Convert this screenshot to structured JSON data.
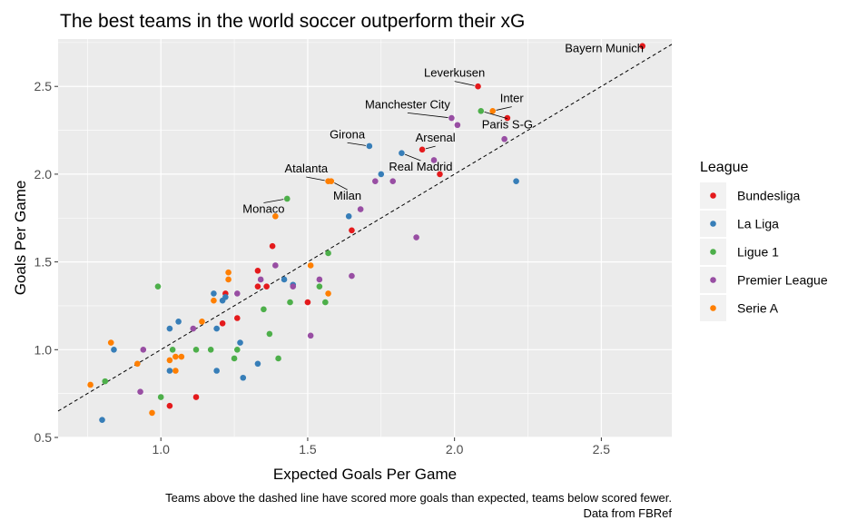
{
  "chart_data": {
    "type": "scatter",
    "title": "The best teams in the world soccer outperform their xG",
    "xlabel": "Expected Goals Per Game",
    "ylabel": "Goals Per Game",
    "caption_lines": [
      "Teams above the dashed line have scored more goals than expected, teams below scored fewer.",
      "Data from FBRef"
    ],
    "xlim": [
      0.65,
      2.74
    ],
    "ylim": [
      0.5,
      2.77
    ],
    "x_ticks": [
      1.0,
      1.5,
      2.0,
      2.5
    ],
    "x_tick_labels": [
      "1.0",
      "1.5",
      "2.0",
      "2.5"
    ],
    "y_ticks": [
      0.5,
      1.0,
      1.5,
      2.0,
      2.5
    ],
    "y_tick_labels": [
      "0.5",
      "1.0",
      "1.5",
      "2.0",
      "2.5"
    ],
    "grid": true,
    "reference_line": {
      "style": "dashed",
      "slope": 1,
      "intercept": 0
    },
    "legend": {
      "title": "League",
      "position": "right",
      "entries": [
        "Bundesliga",
        "La Liga",
        "Ligue 1",
        "Premier League",
        "Serie A"
      ]
    },
    "colors": {
      "Bundesliga": "#E41A1C",
      "La Liga": "#377EB8",
      "Ligue 1": "#4DAF4A",
      "Premier League": "#984EA3",
      "Serie A": "#FF7F00"
    },
    "series": [
      {
        "name": "Bundesliga",
        "points": [
          [
            2.64,
            2.73
          ],
          [
            2.08,
            2.5
          ],
          [
            2.18,
            2.32
          ],
          [
            1.89,
            2.14
          ],
          [
            1.95,
            2.0
          ],
          [
            1.65,
            1.68
          ],
          [
            1.38,
            1.59
          ],
          [
            1.33,
            1.45
          ],
          [
            1.36,
            1.36
          ],
          [
            1.33,
            1.36
          ],
          [
            1.5,
            1.27
          ],
          [
            1.22,
            1.32
          ],
          [
            1.26,
            1.18
          ],
          [
            1.21,
            1.15
          ],
          [
            1.12,
            0.73
          ],
          [
            1.03,
            0.68
          ]
        ]
      },
      {
        "name": "La Liga",
        "points": [
          [
            2.21,
            1.96
          ],
          [
            1.71,
            2.16
          ],
          [
            1.82,
            2.12
          ],
          [
            1.75,
            2.0
          ],
          [
            1.64,
            1.76
          ],
          [
            1.42,
            1.4
          ],
          [
            1.45,
            1.37
          ],
          [
            1.18,
            1.32
          ],
          [
            1.22,
            1.3
          ],
          [
            1.21,
            1.28
          ],
          [
            1.06,
            1.16
          ],
          [
            1.03,
            1.12
          ],
          [
            1.19,
            1.12
          ],
          [
            1.27,
            1.04
          ],
          [
            1.33,
            0.92
          ],
          [
            1.19,
            0.88
          ],
          [
            1.03,
            0.88
          ],
          [
            1.28,
            0.84
          ],
          [
            0.84,
            1.0
          ],
          [
            0.8,
            0.6
          ]
        ]
      },
      {
        "name": "Ligue 1",
        "points": [
          [
            2.09,
            2.36
          ],
          [
            1.43,
            1.86
          ],
          [
            1.57,
            1.55
          ],
          [
            1.35,
            1.23
          ],
          [
            1.44,
            1.27
          ],
          [
            1.54,
            1.36
          ],
          [
            1.56,
            1.27
          ],
          [
            0.99,
            1.36
          ],
          [
            1.37,
            1.09
          ],
          [
            1.4,
            0.95
          ],
          [
            1.26,
            1.0
          ],
          [
            1.25,
            0.95
          ],
          [
            1.17,
            1.0
          ],
          [
            1.12,
            1.0
          ],
          [
            1.04,
            1.0
          ],
          [
            1.0,
            0.73
          ],
          [
            0.81,
            0.82
          ]
        ]
      },
      {
        "name": "Premier League",
        "points": [
          [
            1.99,
            2.32
          ],
          [
            2.01,
            2.28
          ],
          [
            2.17,
            2.2
          ],
          [
            1.93,
            2.08
          ],
          [
            1.73,
            1.96
          ],
          [
            1.79,
            1.96
          ],
          [
            1.68,
            1.8
          ],
          [
            1.87,
            1.64
          ],
          [
            1.65,
            1.42
          ],
          [
            1.39,
            1.48
          ],
          [
            1.54,
            1.4
          ],
          [
            1.34,
            1.4
          ],
          [
            1.26,
            1.32
          ],
          [
            1.45,
            1.36
          ],
          [
            1.51,
            1.08
          ],
          [
            1.11,
            1.12
          ],
          [
            0.94,
            1.0
          ],
          [
            0.93,
            0.76
          ]
        ]
      },
      {
        "name": "Serie A",
        "points": [
          [
            2.13,
            2.36
          ],
          [
            1.57,
            1.96
          ],
          [
            1.58,
            1.96
          ],
          [
            1.39,
            1.76
          ],
          [
            1.51,
            1.48
          ],
          [
            1.23,
            1.44
          ],
          [
            1.23,
            1.4
          ],
          [
            1.18,
            1.28
          ],
          [
            1.14,
            1.16
          ],
          [
            1.57,
            1.32
          ],
          [
            1.05,
            0.96
          ],
          [
            1.07,
            0.96
          ],
          [
            1.03,
            0.94
          ],
          [
            1.05,
            0.88
          ],
          [
            0.83,
            1.04
          ],
          [
            0.92,
            0.92
          ],
          [
            0.76,
            0.8
          ],
          [
            0.97,
            0.64
          ]
        ]
      }
    ],
    "annotations": [
      {
        "text": "Bayern Munich",
        "x": 2.64,
        "y": 2.73,
        "label_x": 2.51,
        "label_y": 2.695,
        "anchor": "middle",
        "leader": false
      },
      {
        "text": "Leverkusen",
        "x": 2.08,
        "y": 2.5,
        "label_x": 2.0,
        "label_y": 2.555,
        "anchor": "middle",
        "leader": true
      },
      {
        "text": "Inter",
        "x": 2.13,
        "y": 2.36,
        "label_x": 2.195,
        "label_y": 2.41,
        "anchor": "middle",
        "leader": true
      },
      {
        "text": "Manchester City",
        "x": 1.99,
        "y": 2.32,
        "label_x": 1.84,
        "label_y": 2.375,
        "anchor": "middle",
        "leader": true
      },
      {
        "text": "Paris S-G",
        "x": 2.09,
        "y": 2.36,
        "label_x": 2.18,
        "label_y": 2.26,
        "anchor": "middle",
        "leader": true
      },
      {
        "text": "Girona",
        "x": 1.71,
        "y": 2.16,
        "label_x": 1.635,
        "label_y": 2.205,
        "anchor": "middle",
        "leader": true
      },
      {
        "text": "Arsenal",
        "x": 1.89,
        "y": 2.14,
        "label_x": 1.935,
        "label_y": 2.185,
        "anchor": "middle",
        "leader": true
      },
      {
        "text": "Real Madrid",
        "x": 1.82,
        "y": 2.12,
        "label_x": 1.885,
        "label_y": 2.02,
        "anchor": "middle",
        "leader": true
      },
      {
        "text": "Atalanta",
        "x": 1.57,
        "y": 1.96,
        "label_x": 1.495,
        "label_y": 2.01,
        "anchor": "middle",
        "leader": true
      },
      {
        "text": "Milan",
        "x": 1.58,
        "y": 1.96,
        "label_x": 1.635,
        "label_y": 1.855,
        "anchor": "middle",
        "leader": true
      },
      {
        "text": "Monaco",
        "x": 1.43,
        "y": 1.86,
        "label_x": 1.35,
        "label_y": 1.78,
        "anchor": "middle",
        "leader": true
      }
    ]
  }
}
